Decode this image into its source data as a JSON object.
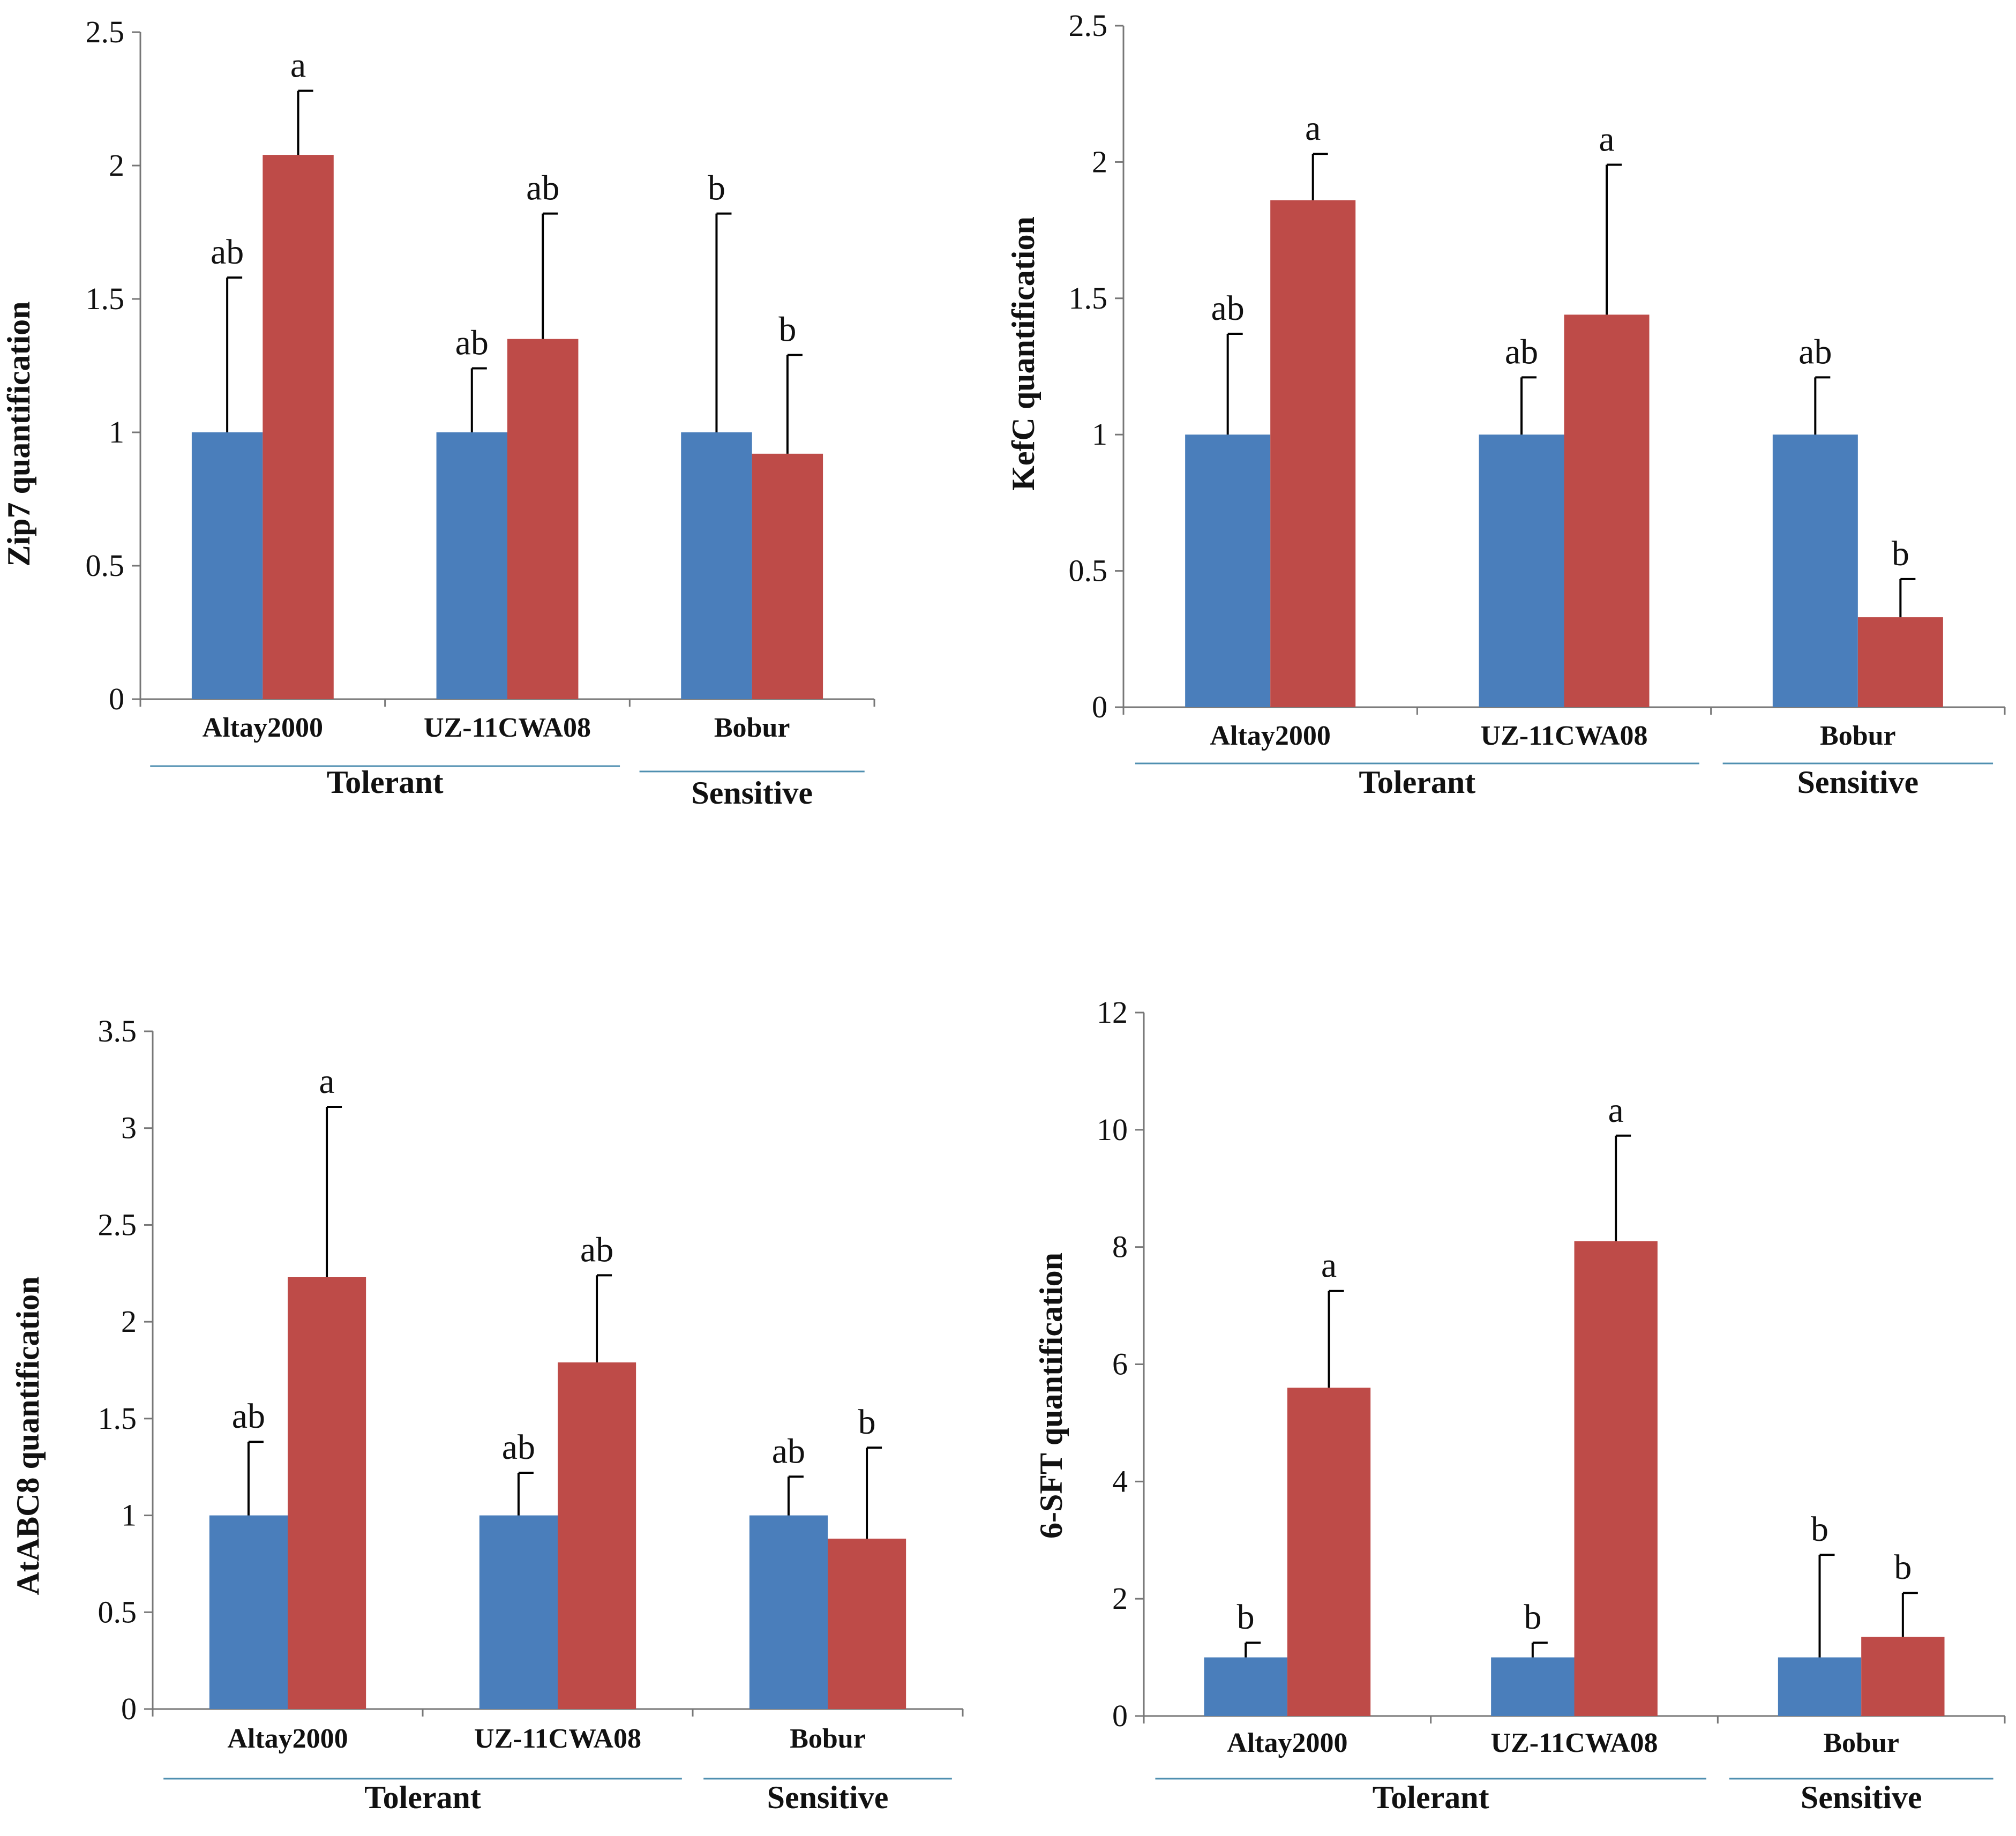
{
  "colors": {
    "series1": "#4a7ebb",
    "series2": "#be4b48",
    "axis": "#777777",
    "errorbar": "#000000",
    "groupline": "#4f8fb0"
  },
  "chart_data": [
    {
      "type": "bar",
      "panel": "top-left",
      "ylabel": "Zip7 quantification",
      "ylim": [
        0,
        2.5
      ],
      "ytick_values": [
        0,
        0.5,
        1,
        1.5,
        2,
        2.5
      ],
      "ytick_labels": [
        "0",
        "0.5",
        "1",
        "1.5",
        "2",
        "2.5"
      ],
      "categories": [
        "Altay2000",
        "UZ-11CWA08",
        "Bobur"
      ],
      "groups": [
        {
          "label": "Tolerant",
          "span": [
            0,
            1
          ]
        },
        {
          "label": "Sensitive",
          "span": [
            2,
            2
          ]
        }
      ],
      "series": [
        {
          "name": "series1",
          "values": [
            1.0,
            1.0,
            1.0
          ],
          "errors": [
            0.58,
            0.24,
            0.82
          ],
          "letters": [
            "ab",
            "ab",
            "b"
          ]
        },
        {
          "name": "series2",
          "values": [
            2.04,
            1.35,
            0.92
          ],
          "errors": [
            0.24,
            0.47,
            0.37
          ],
          "letters": [
            "a",
            "ab",
            "b"
          ]
        }
      ]
    },
    {
      "type": "bar",
      "panel": "top-right",
      "ylabel": "KefC  quantification",
      "ylim": [
        0,
        2.5
      ],
      "ytick_values": [
        0,
        0.5,
        1,
        1.5,
        2,
        2.5
      ],
      "ytick_labels": [
        "0",
        "0.5",
        "1",
        "1.5",
        "2",
        "2.5"
      ],
      "categories": [
        "Altay2000",
        "UZ-11CWA08",
        "Bobur"
      ],
      "groups": [
        {
          "label": "Tolerant",
          "span": [
            0,
            1
          ]
        },
        {
          "label": "Sensitive",
          "span": [
            2,
            2
          ]
        }
      ],
      "series": [
        {
          "name": "series1",
          "values": [
            1.0,
            1.0,
            1.0
          ],
          "errors": [
            0.37,
            0.21,
            0.21
          ],
          "letters": [
            "ab",
            "ab",
            "ab"
          ]
        },
        {
          "name": "series2",
          "values": [
            1.86,
            1.44,
            0.33
          ],
          "errors": [
            0.17,
            0.55,
            0.14
          ],
          "letters": [
            "a",
            "a",
            "b"
          ]
        }
      ]
    },
    {
      "type": "bar",
      "panel": "bottom-left",
      "ylabel": "AtABC8  quantification",
      "ylim": [
        0,
        3.5
      ],
      "ytick_values": [
        0,
        0.5,
        1,
        1.5,
        2,
        2.5,
        3,
        3.5
      ],
      "ytick_labels": [
        "0",
        "0.5",
        "1",
        "1.5",
        "2",
        "2.5",
        "3",
        "3.5"
      ],
      "categories": [
        "Altay2000",
        "UZ-11CWA08",
        "Bobur"
      ],
      "groups": [
        {
          "label": "Tolerant",
          "span": [
            0,
            1
          ]
        },
        {
          "label": "Sensitive",
          "span": [
            2,
            2
          ]
        }
      ],
      "series": [
        {
          "name": "series1",
          "values": [
            1.0,
            1.0,
            1.0
          ],
          "errors": [
            0.38,
            0.22,
            0.2
          ],
          "letters": [
            "ab",
            "ab",
            "ab"
          ]
        },
        {
          "name": "series2",
          "values": [
            2.23,
            1.79,
            0.88
          ],
          "errors": [
            0.88,
            0.45,
            0.47
          ],
          "letters": [
            "a",
            "ab",
            "b"
          ]
        }
      ]
    },
    {
      "type": "bar",
      "panel": "bottom-right",
      "ylabel": "6-SFT  quantification",
      "ylim": [
        0,
        12
      ],
      "ytick_values": [
        0,
        2,
        4,
        6,
        8,
        10,
        12
      ],
      "ytick_labels": [
        "0",
        "2",
        "4",
        "6",
        "8",
        "10",
        "12"
      ],
      "categories": [
        "Altay2000",
        "UZ-11CWA08",
        "Bobur"
      ],
      "groups": [
        {
          "label": "Tolerant",
          "span": [
            0,
            1
          ]
        },
        {
          "label": "Sensitive",
          "span": [
            2,
            2
          ]
        }
      ],
      "series": [
        {
          "name": "series1",
          "values": [
            1.0,
            1.0,
            1.0
          ],
          "errors": [
            0.25,
            0.25,
            1.75
          ],
          "letters": [
            "b",
            "b",
            "b"
          ]
        },
        {
          "name": "series2",
          "values": [
            5.6,
            8.1,
            1.35
          ],
          "errors": [
            1.65,
            1.8,
            0.75
          ],
          "letters": [
            "a",
            "a",
            "b"
          ]
        }
      ]
    }
  ]
}
